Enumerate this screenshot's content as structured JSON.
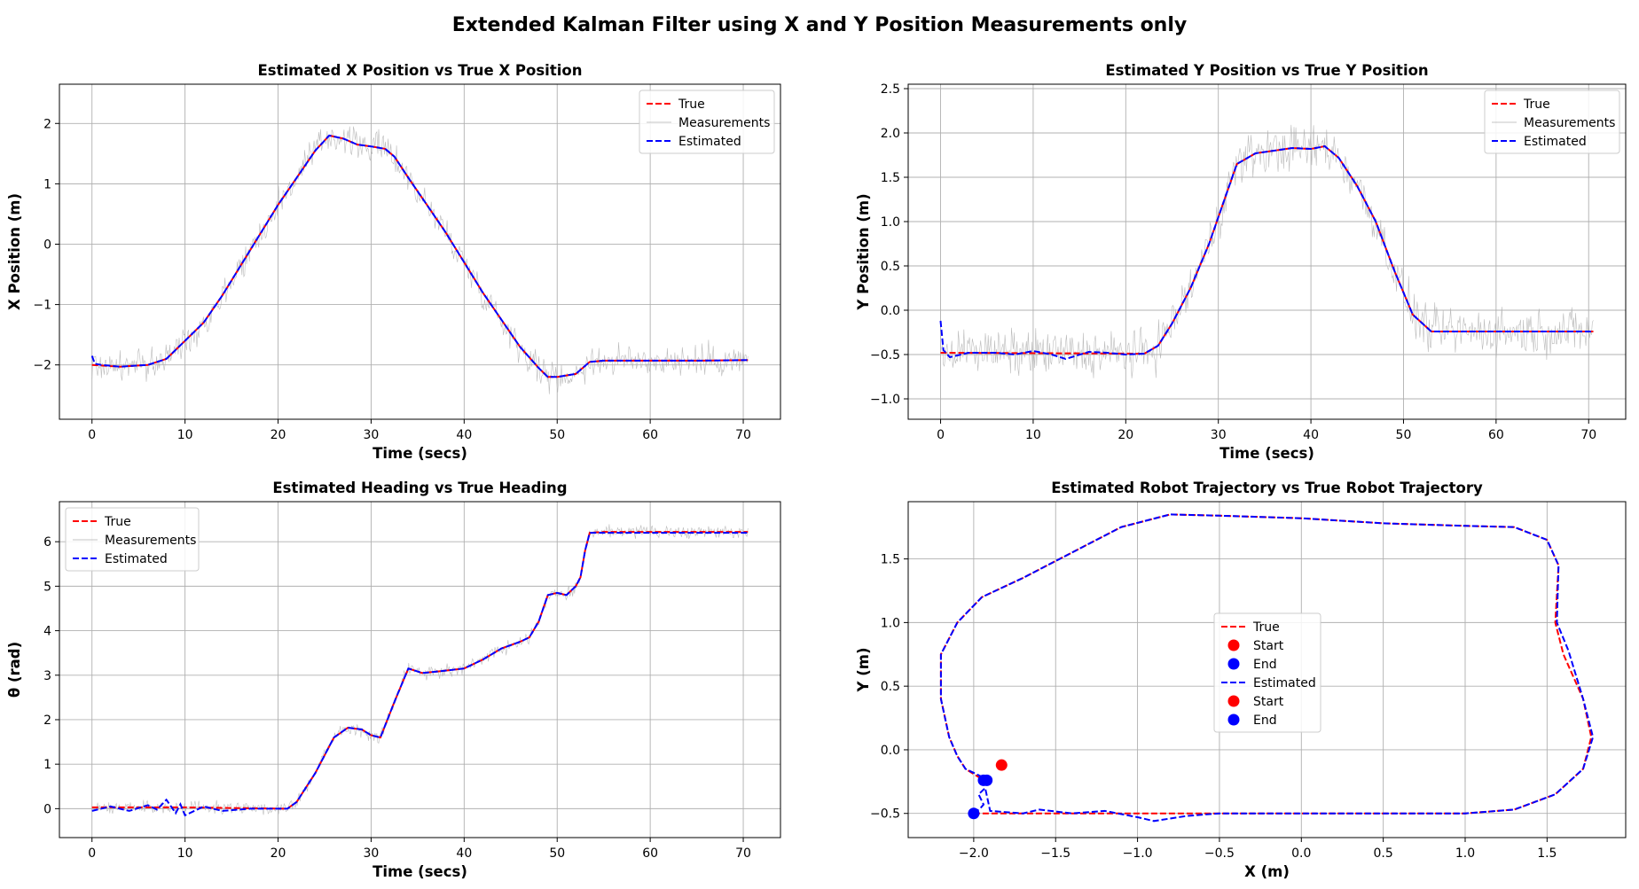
{
  "figure": {
    "suptitle": "Extended Kalman Filter using X and Y Position Measurements only"
  },
  "colors": {
    "true": "#ff0000",
    "estimated": "#0000ff",
    "measurements": "#b0b0b0",
    "grid": "#b0b0b0"
  },
  "chart_data": [
    {
      "type": "line",
      "title": "Estimated X Position vs True X Position",
      "xlabel": "Time (secs)",
      "ylabel": "X Position (m)",
      "xlim": [
        -3.5,
        74
      ],
      "ylim": [
        -2.9,
        2.65
      ],
      "xticks": [
        0,
        10,
        20,
        30,
        40,
        50,
        60,
        70
      ],
      "yticks": [
        -2,
        -1,
        0,
        1,
        2
      ],
      "grid": true,
      "legend": {
        "placement": "top-right",
        "entries": [
          "True",
          "Measurements",
          "Estimated"
        ]
      },
      "noise": 0.18,
      "series": [
        {
          "name": "True",
          "style": "dashed",
          "color": "#ff0000",
          "x": [
            0,
            3,
            6,
            8,
            10,
            12,
            14,
            16,
            18,
            20,
            22,
            24,
            25.5,
            27,
            28.5,
            30,
            31.5,
            32.5,
            34,
            36,
            38,
            40,
            42,
            44,
            46,
            48,
            49,
            50,
            52,
            53.5,
            55,
            60,
            65,
            70.5
          ],
          "y": [
            -2.0,
            -2.03,
            -2.0,
            -1.9,
            -1.6,
            -1.3,
            -0.85,
            -0.35,
            0.15,
            0.65,
            1.1,
            1.55,
            1.8,
            1.75,
            1.65,
            1.62,
            1.58,
            1.45,
            1.1,
            0.65,
            0.2,
            -0.3,
            -0.8,
            -1.25,
            -1.7,
            -2.05,
            -2.2,
            -2.2,
            -2.15,
            -1.95,
            -1.93,
            -1.93,
            -1.93,
            -1.92
          ]
        },
        {
          "name": "Estimated",
          "style": "dashed",
          "color": "#0000ff",
          "x": [
            0,
            0.3,
            1,
            3,
            6,
            8,
            10,
            12,
            14,
            16,
            18,
            20,
            22,
            24,
            25.5,
            27,
            28.5,
            30,
            31.5,
            32.5,
            34,
            36,
            38,
            40,
            42,
            44,
            46,
            48,
            49,
            50,
            52,
            53.5,
            55,
            60,
            65,
            70.5
          ],
          "y": [
            -1.85,
            -1.98,
            -2.0,
            -2.03,
            -2.0,
            -1.9,
            -1.6,
            -1.3,
            -0.85,
            -0.35,
            0.15,
            0.65,
            1.1,
            1.55,
            1.8,
            1.75,
            1.65,
            1.62,
            1.58,
            1.45,
            1.1,
            0.65,
            0.2,
            -0.3,
            -0.8,
            -1.25,
            -1.7,
            -2.05,
            -2.2,
            -2.2,
            -2.15,
            -1.95,
            -1.93,
            -1.93,
            -1.93,
            -1.92
          ]
        }
      ]
    },
    {
      "type": "line",
      "title": "Estimated Y Position vs True Y Position",
      "xlabel": "Time (secs)",
      "ylabel": "Y Position (m)",
      "xlim": [
        -3.5,
        74
      ],
      "ylim": [
        -1.23,
        2.55
      ],
      "xticks": [
        0,
        10,
        20,
        30,
        40,
        50,
        60,
        70
      ],
      "yticks": [
        -1.0,
        -0.5,
        0.0,
        0.5,
        1.0,
        1.5,
        2.0,
        2.5
      ],
      "ytick_format": 1,
      "grid": true,
      "legend": {
        "placement": "top-right",
        "entries": [
          "True",
          "Measurements",
          "Estimated"
        ]
      },
      "noise": 0.18,
      "series": [
        {
          "name": "True",
          "style": "dashed",
          "color": "#ff0000",
          "x": [
            0,
            22,
            23.5,
            25,
            27,
            29,
            30.5,
            32,
            34,
            36,
            38,
            40,
            41.5,
            43,
            45,
            47,
            49,
            51,
            53,
            60,
            70.5
          ],
          "y": [
            -0.48,
            -0.49,
            -0.4,
            -0.15,
            0.25,
            0.75,
            1.2,
            1.65,
            1.77,
            1.8,
            1.83,
            1.82,
            1.85,
            1.72,
            1.4,
            1.0,
            0.45,
            -0.05,
            -0.24,
            -0.24,
            -0.24
          ]
        },
        {
          "name": "Estimated",
          "style": "dashed",
          "color": "#0000ff",
          "x": [
            0,
            0.3,
            1,
            3,
            6,
            8,
            10,
            12,
            13.5,
            16,
            18,
            20,
            22,
            23.5,
            25,
            27,
            29,
            30.5,
            32,
            34,
            36,
            38,
            40,
            41.5,
            43,
            45,
            47,
            49,
            51,
            53,
            60,
            70.5
          ],
          "y": [
            -0.12,
            -0.45,
            -0.53,
            -0.48,
            -0.48,
            -0.5,
            -0.46,
            -0.5,
            -0.55,
            -0.47,
            -0.48,
            -0.5,
            -0.49,
            -0.4,
            -0.15,
            0.25,
            0.75,
            1.2,
            1.65,
            1.77,
            1.8,
            1.83,
            1.82,
            1.85,
            1.72,
            1.4,
            1.0,
            0.45,
            -0.05,
            -0.24,
            -0.24,
            -0.24
          ]
        }
      ]
    },
    {
      "type": "line",
      "title": "Estimated Heading vs True Heading",
      "xlabel": "Time (secs)",
      "ylabel": "θ (rad)",
      "xlim": [
        -3.5,
        74
      ],
      "ylim": [
        -0.65,
        6.9
      ],
      "xticks": [
        0,
        10,
        20,
        30,
        40,
        50,
        60,
        70
      ],
      "yticks": [
        0,
        1,
        2,
        3,
        4,
        5,
        6
      ],
      "grid": true,
      "legend": {
        "placement": "top-left",
        "entries": [
          "True",
          "Measurements",
          "Estimated"
        ]
      },
      "noise": 0.1,
      "series": [
        {
          "name": "True",
          "style": "dashed",
          "color": "#ff0000",
          "x": [
            0,
            10,
            21,
            22,
            24,
            26,
            27.5,
            29,
            30,
            31,
            32.5,
            34,
            35.5,
            37,
            40,
            42,
            44,
            46,
            47,
            48,
            49,
            50,
            51,
            52,
            52.5,
            53,
            53.5,
            55,
            60,
            65,
            70.5
          ],
          "y": [
            0.03,
            0.03,
            0.0,
            0.15,
            0.8,
            1.6,
            1.82,
            1.78,
            1.65,
            1.6,
            2.4,
            3.15,
            3.05,
            3.08,
            3.15,
            3.35,
            3.6,
            3.75,
            3.85,
            4.2,
            4.8,
            4.85,
            4.8,
            5.0,
            5.2,
            5.8,
            6.2,
            6.22,
            6.22,
            6.22,
            6.22
          ]
        },
        {
          "name": "Estimated",
          "style": "dashed",
          "color": "#0000ff",
          "x": [
            0,
            2,
            4,
            6,
            7,
            8,
            8.5,
            9,
            9.5,
            10,
            12,
            14,
            17,
            21,
            22,
            24,
            26,
            27.5,
            29,
            30,
            31,
            32.5,
            34,
            35.5,
            37,
            40,
            42,
            44,
            46,
            47,
            48,
            49,
            50,
            51,
            52,
            52.5,
            53,
            53.5,
            55,
            60,
            65,
            70.5
          ],
          "y": [
            -0.05,
            0.05,
            -0.05,
            0.08,
            -0.02,
            0.2,
            0.05,
            -0.1,
            0.1,
            -0.15,
            0.05,
            -0.05,
            0.0,
            0.0,
            0.15,
            0.8,
            1.6,
            1.82,
            1.78,
            1.65,
            1.6,
            2.4,
            3.15,
            3.05,
            3.08,
            3.15,
            3.35,
            3.6,
            3.75,
            3.85,
            4.2,
            4.8,
            4.85,
            4.8,
            5.0,
            5.2,
            5.8,
            6.2,
            6.2,
            6.2,
            6.2,
            6.2
          ]
        }
      ]
    },
    {
      "type": "line",
      "title": "Estimated Robot Trajectory vs True Robot Trajectory",
      "xlabel": "X (m)",
      "ylabel": "Y (m)",
      "xlim": [
        -2.4,
        1.98
      ],
      "ylim": [
        -0.69,
        1.95
      ],
      "xticks": [
        -2.0,
        -1.5,
        -1.0,
        -0.5,
        0.0,
        0.5,
        1.0,
        1.5
      ],
      "yticks": [
        -0.5,
        0.0,
        0.5,
        1.0,
        1.5
      ],
      "xtick_format": 1,
      "ytick_format": 1,
      "grid": true,
      "legend": {
        "placement": "center",
        "entries": [
          "True",
          "Start",
          "End",
          "Estimated",
          "Start",
          "End"
        ]
      },
      "noise": 0,
      "series": [
        {
          "name": "True",
          "style": "dashed",
          "color": "#ff0000",
          "x": [
            -2.0,
            -1.5,
            -1.0,
            -0.5,
            0.0,
            0.5,
            1.0,
            1.3,
            1.55,
            1.72,
            1.77,
            1.72,
            1.6,
            1.55,
            1.57,
            1.5,
            1.3,
            1.0,
            0.5,
            0.0,
            -0.5,
            -0.8,
            -1.1,
            -1.4,
            -1.7,
            -1.95,
            -2.1,
            -2.2,
            -2.2,
            -2.15,
            -2.1,
            -2.05,
            -1.95
          ],
          "y": [
            -0.5,
            -0.5,
            -0.5,
            -0.5,
            -0.5,
            -0.5,
            -0.5,
            -0.47,
            -0.35,
            -0.15,
            0.1,
            0.4,
            0.75,
            1.0,
            1.45,
            1.65,
            1.75,
            1.76,
            1.78,
            1.82,
            1.84,
            1.85,
            1.75,
            1.55,
            1.35,
            1.2,
            1.0,
            0.75,
            0.4,
            0.1,
            -0.05,
            -0.15,
            -0.23
          ]
        },
        {
          "name": "Estimated",
          "style": "dashed",
          "color": "#0000ff",
          "x": [
            -2.0,
            -1.96,
            -1.94,
            -1.97,
            -1.93,
            -1.9,
            -1.7,
            -1.6,
            -1.4,
            -1.2,
            -1.0,
            -0.9,
            -0.7,
            -0.5,
            0.0,
            0.5,
            1.0,
            1.3,
            1.55,
            1.72,
            1.78,
            1.72,
            1.63,
            1.56,
            1.57,
            1.5,
            1.3,
            1.0,
            0.5,
            0.0,
            -0.5,
            -0.8,
            -1.1,
            -1.4,
            -1.7,
            -1.95,
            -2.1,
            -2.2,
            -2.2,
            -2.15,
            -2.1,
            -2.05,
            -1.92
          ],
          "y": [
            -0.5,
            -0.46,
            -0.43,
            -0.35,
            -0.3,
            -0.48,
            -0.5,
            -0.47,
            -0.5,
            -0.48,
            -0.53,
            -0.56,
            -0.52,
            -0.5,
            -0.5,
            -0.5,
            -0.5,
            -0.47,
            -0.35,
            -0.15,
            0.1,
            0.4,
            0.78,
            1.0,
            1.45,
            1.65,
            1.75,
            1.76,
            1.78,
            1.82,
            1.84,
            1.85,
            1.75,
            1.55,
            1.35,
            1.2,
            1.0,
            0.75,
            0.4,
            0.1,
            -0.05,
            -0.15,
            -0.23
          ]
        }
      ],
      "markers": [
        {
          "label": "Start",
          "color": "#ff0000",
          "x": -1.83,
          "y": -0.12
        },
        {
          "label": "End",
          "color": "#0000ff",
          "x": -1.92,
          "y": -0.24
        },
        {
          "label": "Start",
          "color": "#0000ff",
          "x": -2.0,
          "y": -0.5
        },
        {
          "label": "End",
          "color": "#0000ff",
          "x": -1.94,
          "y": -0.24
        }
      ]
    }
  ]
}
